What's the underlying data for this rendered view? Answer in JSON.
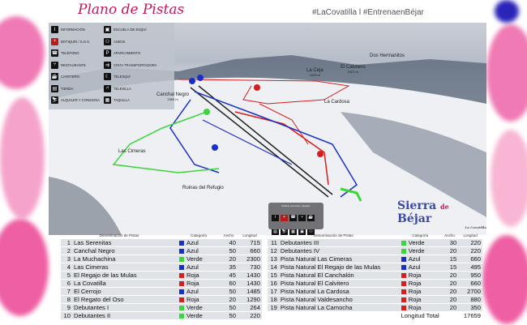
{
  "header": {
    "title": "Plano de Pistas",
    "hashtags": "#LaCovatilla l #EntrenaenBéjar"
  },
  "colors": {
    "Azul": "#1a2fc8",
    "Roja": "#d91c1c",
    "Verde": "#3ad63a",
    "accent": "#c2185b"
  },
  "legend": {
    "items": [
      {
        "label": "Información",
        "icon": "info-icon"
      },
      {
        "label": "Escuela de esquí",
        "icon": "ski-school-icon"
      },
      {
        "label": "Botiquín / S.O.S.",
        "icon": "first-aid-icon"
      },
      {
        "label": "Aseos",
        "icon": "toilets-icon"
      },
      {
        "label": "Teléfono",
        "icon": "phone-icon"
      },
      {
        "label": "Aparcamiento",
        "icon": "parking-icon"
      },
      {
        "label": "Restaurante",
        "icon": "restaurant-icon"
      },
      {
        "label": "Cinta transportadora",
        "icon": "conveyor-icon"
      },
      {
        "label": "Cafetería",
        "icon": "cafe-icon"
      },
      {
        "label": "Telesquí",
        "icon": "ski-lift-icon"
      },
      {
        "label": "Tienda",
        "icon": "shop-icon"
      },
      {
        "label": "Telesilla",
        "icon": "chairlift-icon"
      },
      {
        "label": "Alquiler y consigna",
        "icon": "rental-icon"
      },
      {
        "label": "Taquilla",
        "icon": "ticket-office-icon"
      }
    ]
  },
  "map": {
    "places": [
      {
        "name": "La Ceja",
        "elev": "2425 m"
      },
      {
        "name": "Dos Hermanitos",
        "elev": ""
      },
      {
        "name": "El Calvitero",
        "elev": "2401 m"
      },
      {
        "name": "Canchal Negro",
        "elev": "2369 m"
      },
      {
        "name": "La Cardosa",
        "elev": ""
      },
      {
        "name": "Las Cimeras",
        "elev": ""
      },
      {
        "name": "Ruinas del Refugio",
        "elev": ""
      }
    ],
    "services_title": "Edificio servicios y alquiler",
    "brand": {
      "name1": "Sierra",
      "name2": "de",
      "name3": "Béjar",
      "sub": "La Covatilla"
    }
  },
  "table": {
    "headers": {
      "name": "Denominación de Pistas",
      "category": "Categoría",
      "width": "Ancho",
      "length": "Longitud"
    },
    "rows": [
      {
        "n": "1",
        "name": "Las Serenitas",
        "cat": "Azul",
        "w": "40",
        "l": "715"
      },
      {
        "n": "2",
        "name": "Canchal Negro",
        "cat": "Azul",
        "w": "50",
        "l": "660"
      },
      {
        "n": "3",
        "name": "La Muchachina",
        "cat": "Verde",
        "w": "20",
        "l": "2300"
      },
      {
        "n": "4",
        "name": "Las Cimeras",
        "cat": "Azul",
        "w": "35",
        "l": "730"
      },
      {
        "n": "5",
        "name": "El Regajo de las Mulas",
        "cat": "Roja",
        "w": "45",
        "l": "1430"
      },
      {
        "n": "6",
        "name": "La Covatilla",
        "cat": "Roja",
        "w": "60",
        "l": "1430"
      },
      {
        "n": "7",
        "name": "El Cerrojo",
        "cat": "Azul",
        "w": "50",
        "l": "1485"
      },
      {
        "n": "8",
        "name": "El Regato del Oso",
        "cat": "Roja",
        "w": "20",
        "l": "1290"
      },
      {
        "n": "9",
        "name": "Debutantes I",
        "cat": "Verde",
        "w": "50",
        "l": "264"
      },
      {
        "n": "10",
        "name": "Debutantes II",
        "cat": "Verde",
        "w": "50",
        "l": "220"
      },
      {
        "n": "11",
        "name": "Debutantes III",
        "cat": "Verde",
        "w": "30",
        "l": "220"
      },
      {
        "n": "12",
        "name": "Debutantes IV",
        "cat": "Verde",
        "w": "20",
        "l": "220"
      },
      {
        "n": "13",
        "name": "Pista Natural Las Cimeras",
        "cat": "Azul",
        "w": "15",
        "l": "660"
      },
      {
        "n": "14",
        "name": "Pista Natural El Regajo de las Mulas",
        "cat": "Azul",
        "w": "15",
        "l": "495"
      },
      {
        "n": "15",
        "name": "Pista Natural El Canchalón",
        "cat": "Roja",
        "w": "20",
        "l": "950"
      },
      {
        "n": "16",
        "name": "Pista Natural El Calvitero",
        "cat": "Roja",
        "w": "20",
        "l": "660"
      },
      {
        "n": "17",
        "name": "Pista Natural La Cardosa",
        "cat": "Roja",
        "w": "20",
        "l": "2700"
      },
      {
        "n": "18",
        "name": "Pista Natural Valdesancho",
        "cat": "Roja",
        "w": "20",
        "l": "880"
      },
      {
        "n": "19",
        "name": "Pista Natural La Camocha",
        "cat": "Roja",
        "w": "20",
        "l": "350"
      }
    ],
    "total_label": "Longitud Total",
    "total": "17659"
  }
}
